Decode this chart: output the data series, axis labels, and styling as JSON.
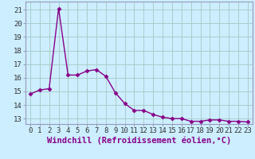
{
  "x": [
    0,
    1,
    2,
    3,
    4,
    5,
    6,
    7,
    8,
    9,
    10,
    11,
    12,
    13,
    14,
    15,
    16,
    17,
    18,
    19,
    20,
    21,
    22,
    23
  ],
  "y": [
    14.8,
    15.1,
    15.2,
    21.1,
    16.2,
    16.2,
    16.5,
    16.6,
    16.1,
    14.9,
    14.1,
    13.6,
    13.6,
    13.3,
    13.1,
    13.0,
    13.0,
    12.8,
    12.8,
    12.9,
    12.9,
    12.8,
    12.8,
    12.75
  ],
  "line_color": "#880088",
  "marker": "D",
  "marker_size": 2.5,
  "bg_color": "#cceeff",
  "grid_color": "#aacccc",
  "xlabel": "Windchill (Refroidissement éolien,°C)",
  "ylabel_ticks": [
    13,
    14,
    15,
    16,
    17,
    18,
    19,
    20,
    21
  ],
  "ylim": [
    12.6,
    21.6
  ],
  "xlim": [
    -0.5,
    23.5
  ],
  "tick_fontsize": 6.5,
  "xlabel_fontsize": 7.5,
  "line_width": 1.0,
  "spine_color": "#9999bb"
}
